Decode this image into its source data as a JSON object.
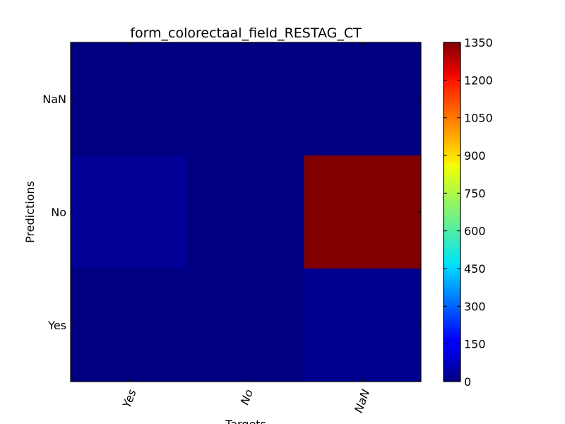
{
  "chart_data": {
    "type": "heatmap",
    "title": "form_colorectaal_field_RESTAG_CT",
    "xlabel": "Targets",
    "ylabel": "Predictions",
    "x_categories": [
      "Yes",
      "No",
      "NaN"
    ],
    "y_categories": [
      "NaN",
      "No",
      "Yes"
    ],
    "values": [
      [
        0,
        0,
        0
      ],
      [
        30,
        0,
        1350
      ],
      [
        0,
        0,
        20
      ]
    ],
    "colormap": "jet",
    "colorbar": {
      "min": 0,
      "max": 1350,
      "ticks": [
        "0",
        "150",
        "300",
        "450",
        "600",
        "750",
        "900",
        "1050",
        "1200",
        "1350"
      ]
    }
  }
}
